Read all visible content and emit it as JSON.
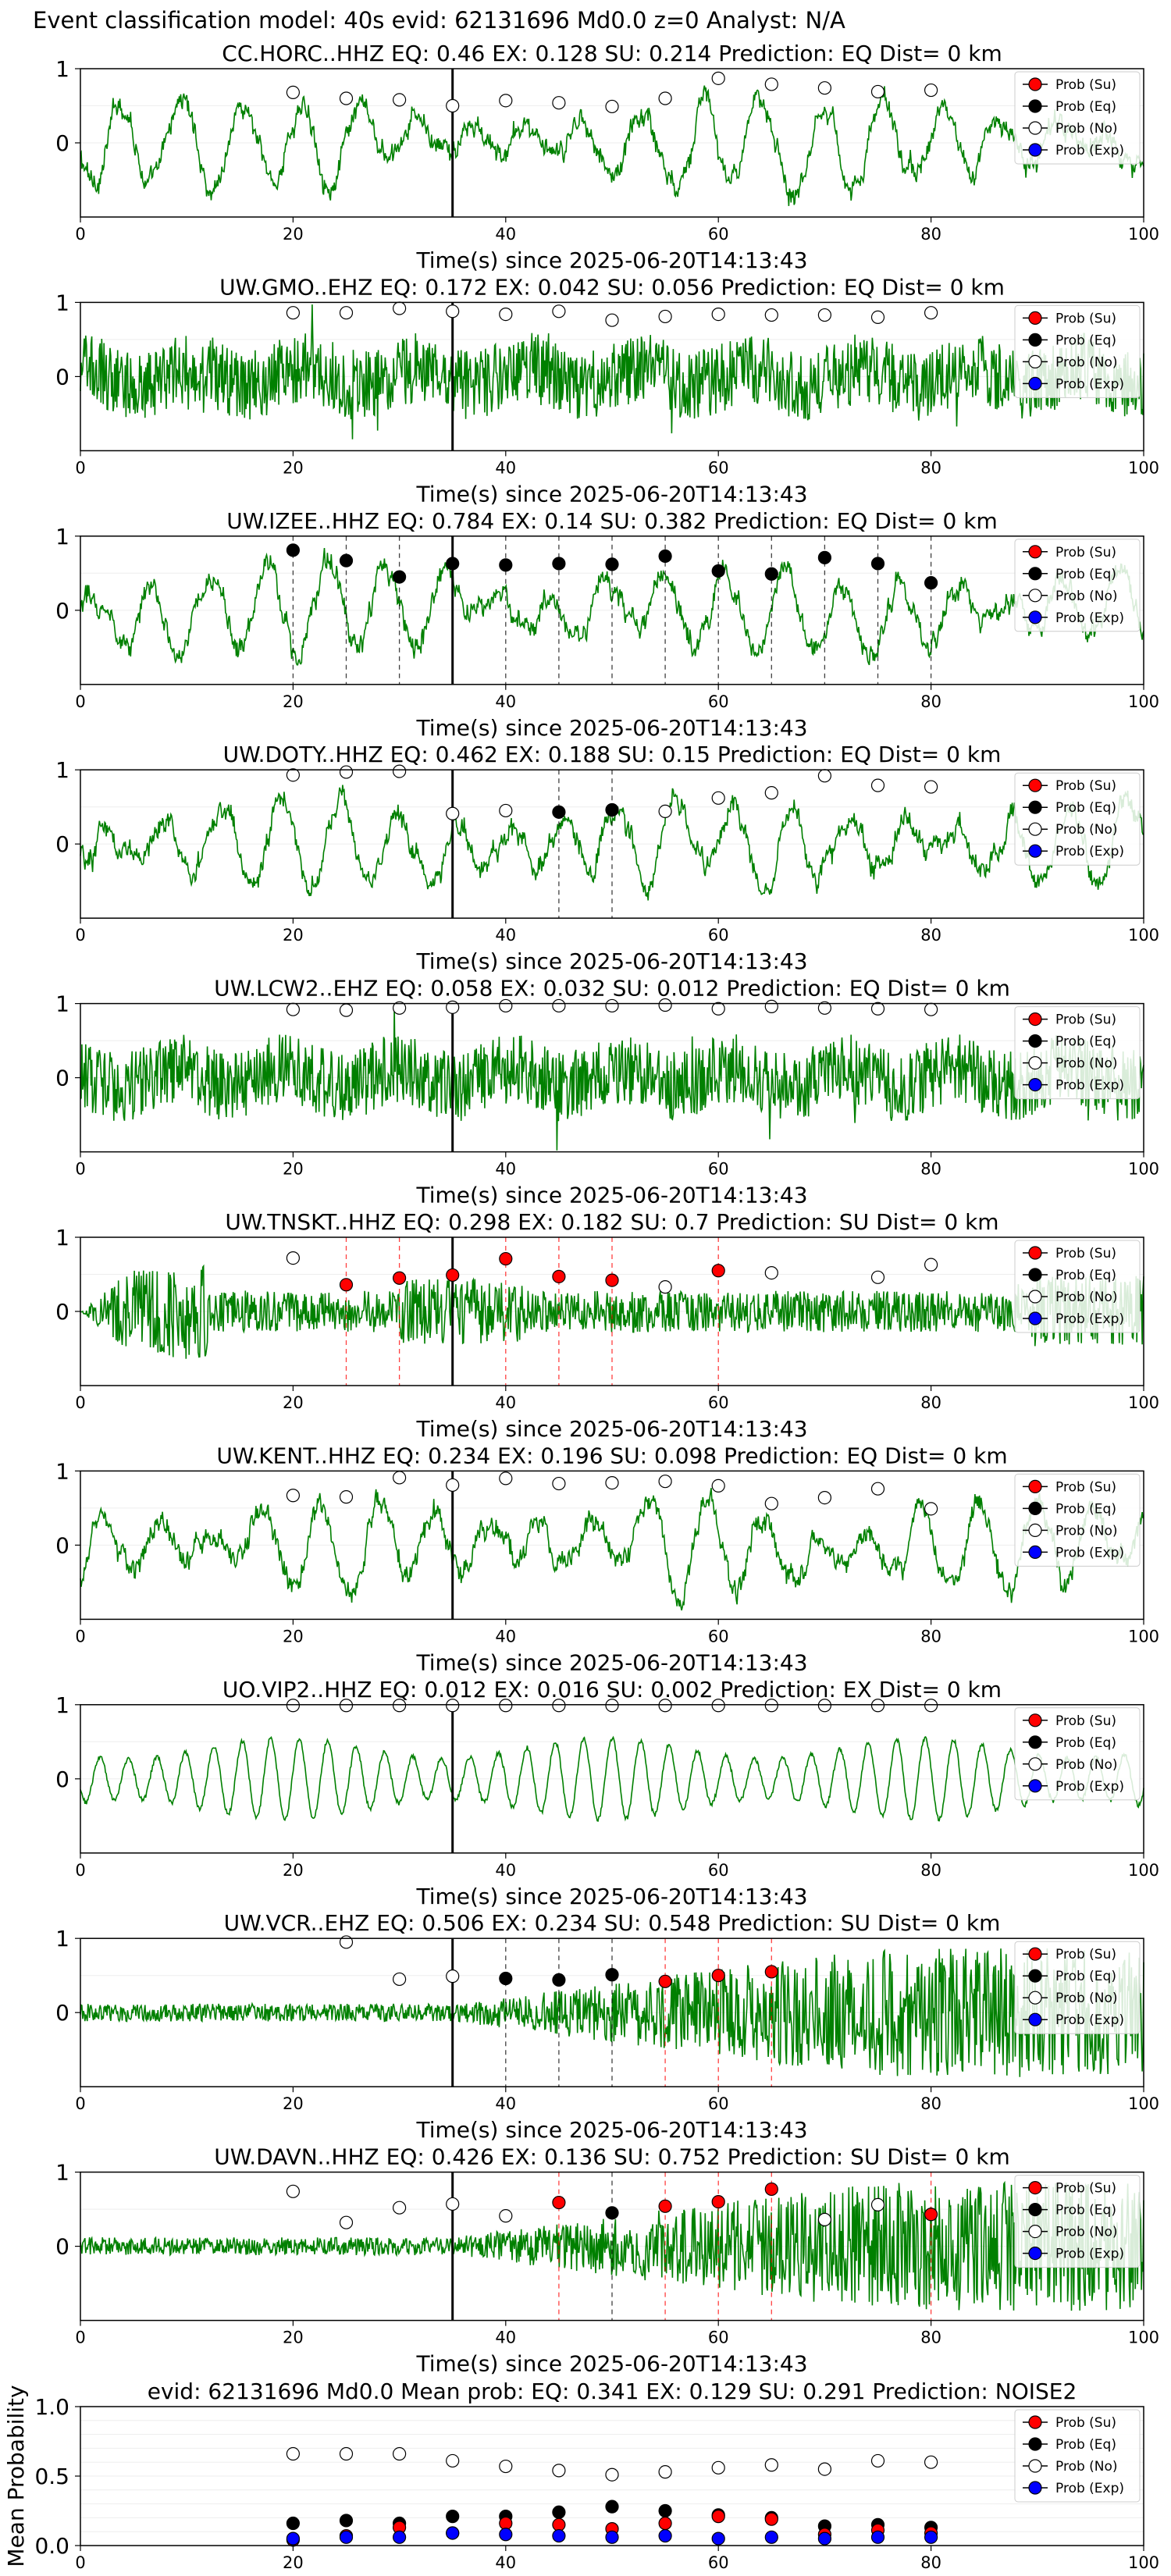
{
  "figure_title": "Event classification model: 40s evid: 62131696 Md0.0 z=0 Analyst: N/A",
  "colors": {
    "waveform": "#008000",
    "su": "#ff0000",
    "eq": "#000000",
    "no": "#ffffff",
    "exp": "#0000ff",
    "marker_edge": "#000000"
  },
  "chart_data": [
    {
      "type": "line",
      "title": "CC.HORC..HHZ   EQ: 0.46  EX: 0.128  SU: 0.214   Prediction: EQ    Dist= 0 km",
      "xlabel": "Time(s) since 2025-06-20T14:13:43",
      "ylabel": "",
      "xlim": [
        0,
        100
      ],
      "ylim": [
        -1,
        1
      ],
      "xticks": [
        0,
        20,
        40,
        60,
        80,
        100
      ],
      "yticks": [
        0,
        1
      ],
      "style": "lowfreq",
      "origin_line_x": 35,
      "dashed_lines": [],
      "legend": [
        "Prob (Su)",
        "Prob (Eq)",
        "Prob (No)",
        "Prob (Exp)"
      ],
      "legend_position": "upper right",
      "series": [
        {
          "name": "Prob (No)",
          "x": [
            20,
            25,
            30,
            35,
            40,
            45,
            50,
            55,
            60,
            65,
            70,
            75,
            80
          ],
          "y": [
            0.68,
            0.6,
            0.58,
            0.5,
            0.57,
            0.54,
            0.49,
            0.6,
            0.87,
            0.79,
            0.74,
            0.69,
            0.71
          ]
        }
      ]
    },
    {
      "type": "line",
      "title": "UW.GMO..EHZ   EQ: 0.172  EX: 0.042  SU: 0.056   Prediction: EQ    Dist= 0 km",
      "xlabel": "Time(s) since 2025-06-20T14:13:43",
      "ylabel": "",
      "xlim": [
        0,
        100
      ],
      "ylim": [
        -1,
        1
      ],
      "xticks": [
        0,
        20,
        40,
        60,
        80,
        100
      ],
      "yticks": [
        0,
        1
      ],
      "style": "noise",
      "origin_line_x": 35,
      "dashed_lines": [],
      "legend": [
        "Prob (Su)",
        "Prob (Eq)",
        "Prob (No)",
        "Prob (Exp)"
      ],
      "legend_position": "upper right",
      "series": [
        {
          "name": "Prob (No)",
          "x": [
            20,
            25,
            30,
            35,
            40,
            45,
            50,
            55,
            60,
            65,
            70,
            75,
            80
          ],
          "y": [
            0.86,
            0.86,
            0.92,
            0.88,
            0.84,
            0.88,
            0.76,
            0.81,
            0.84,
            0.83,
            0.83,
            0.8,
            0.86
          ]
        }
      ]
    },
    {
      "type": "line",
      "title": "UW.IZEE..HHZ   EQ: 0.784  EX: 0.14  SU: 0.382   Prediction: EQ    Dist= 0 km",
      "xlabel": "Time(s) since 2025-06-20T14:13:43",
      "ylabel": "",
      "xlim": [
        0,
        100
      ],
      "ylim": [
        -1,
        1
      ],
      "xticks": [
        0,
        20,
        40,
        60,
        80,
        100
      ],
      "yticks": [
        0,
        1
      ],
      "style": "lowfreq",
      "origin_line_x": 35,
      "dashed_lines": [
        {
          "x": 20,
          "color": "black"
        },
        {
          "x": 25,
          "color": "black"
        },
        {
          "x": 30,
          "color": "black"
        },
        {
          "x": 35,
          "color": "black"
        },
        {
          "x": 40,
          "color": "black"
        },
        {
          "x": 45,
          "color": "black"
        },
        {
          "x": 50,
          "color": "black"
        },
        {
          "x": 55,
          "color": "black"
        },
        {
          "x": 60,
          "color": "black"
        },
        {
          "x": 65,
          "color": "black"
        },
        {
          "x": 70,
          "color": "black"
        },
        {
          "x": 75,
          "color": "black"
        },
        {
          "x": 80,
          "color": "black"
        }
      ],
      "legend": [
        "Prob (Su)",
        "Prob (Eq)",
        "Prob (No)",
        "Prob (Exp)"
      ],
      "legend_position": "upper right",
      "series": [
        {
          "name": "Prob (Eq)",
          "x": [
            20,
            25,
            30,
            35,
            40,
            45,
            50,
            55,
            60,
            65,
            70,
            75,
            80
          ],
          "y": [
            0.81,
            0.67,
            0.45,
            0.63,
            0.61,
            0.63,
            0.62,
            0.73,
            0.53,
            0.49,
            0.71,
            0.63,
            0.37
          ]
        }
      ]
    },
    {
      "type": "line",
      "title": "UW.DOTY..HHZ   EQ: 0.462  EX: 0.188  SU: 0.15   Prediction: EQ    Dist= 0 km",
      "xlabel": "Time(s) since 2025-06-20T14:13:43",
      "ylabel": "",
      "xlim": [
        0,
        100
      ],
      "ylim": [
        -1,
        1
      ],
      "xticks": [
        0,
        20,
        40,
        60,
        80,
        100
      ],
      "yticks": [
        0,
        1
      ],
      "style": "lowfreq",
      "origin_line_x": 35,
      "dashed_lines": [
        {
          "x": 45,
          "color": "black"
        },
        {
          "x": 50,
          "color": "black"
        }
      ],
      "legend": [
        "Prob (Su)",
        "Prob (Eq)",
        "Prob (No)",
        "Prob (Exp)"
      ],
      "legend_position": "upper right",
      "series": [
        {
          "name": "Prob (No)",
          "x": [
            20,
            25,
            30,
            35,
            40,
            55,
            60,
            65,
            70,
            75,
            80
          ],
          "y": [
            0.93,
            0.97,
            0.98,
            0.41,
            0.45,
            0.44,
            0.62,
            0.69,
            0.92,
            0.79,
            0.77
          ]
        },
        {
          "name": "Prob (Eq)",
          "x": [
            45,
            50
          ],
          "y": [
            0.43,
            0.46
          ]
        }
      ]
    },
    {
      "type": "line",
      "title": "UW.LCW2..EHZ   EQ: 0.058  EX: 0.032  SU: 0.012   Prediction: EQ    Dist= 0 km",
      "xlabel": "Time(s) since 2025-06-20T14:13:43",
      "ylabel": "",
      "xlim": [
        0,
        100
      ],
      "ylim": [
        -1,
        1
      ],
      "xticks": [
        0,
        20,
        40,
        60,
        80,
        100
      ],
      "yticks": [
        0,
        1
      ],
      "style": "noise",
      "origin_line_x": 35,
      "dashed_lines": [],
      "legend": [
        "Prob (Su)",
        "Prob (Eq)",
        "Prob (No)",
        "Prob (Exp)"
      ],
      "legend_position": "upper right",
      "series": [
        {
          "name": "Prob (No)",
          "x": [
            20,
            25,
            30,
            35,
            40,
            45,
            50,
            55,
            60,
            65,
            70,
            75,
            80
          ],
          "y": [
            0.92,
            0.91,
            0.94,
            0.95,
            0.97,
            0.97,
            0.97,
            0.98,
            0.93,
            0.96,
            0.94,
            0.93,
            0.92
          ]
        }
      ]
    },
    {
      "type": "line",
      "title": "UW.TNSKT..HHZ   EQ: 0.298  EX: 0.182  SU: 0.7   Prediction: SU    Dist= 0 km",
      "xlabel": "Time(s) since 2025-06-20T14:13:43",
      "ylabel": "",
      "xlim": [
        0,
        100
      ],
      "ylim": [
        -1,
        1
      ],
      "xticks": [
        0,
        20,
        40,
        60,
        80,
        100
      ],
      "yticks": [
        0,
        1
      ],
      "style": "burst",
      "origin_line_x": 35,
      "dashed_lines": [
        {
          "x": 25,
          "color": "red"
        },
        {
          "x": 30,
          "color": "red"
        },
        {
          "x": 40,
          "color": "red"
        },
        {
          "x": 45,
          "color": "red"
        },
        {
          "x": 50,
          "color": "red"
        },
        {
          "x": 60,
          "color": "red"
        }
      ],
      "legend": [
        "Prob (Su)",
        "Prob (Eq)",
        "Prob (No)",
        "Prob (Exp)"
      ],
      "legend_position": "upper right",
      "series": [
        {
          "name": "Prob (No)",
          "x": [
            20,
            55,
            65,
            75,
            80
          ],
          "y": [
            0.72,
            0.33,
            0.52,
            0.46,
            0.63
          ]
        },
        {
          "name": "Prob (Su)",
          "x": [
            25,
            30,
            35,
            40,
            45,
            50,
            60
          ],
          "y": [
            0.36,
            0.45,
            0.49,
            0.71,
            0.47,
            0.42,
            0.55
          ]
        }
      ]
    },
    {
      "type": "line",
      "title": "UW.KENT..HHZ   EQ: 0.234  EX: 0.196  SU: 0.098   Prediction: EQ    Dist= 0 km",
      "xlabel": "Time(s) since 2025-06-20T14:13:43",
      "ylabel": "",
      "xlim": [
        0,
        100
      ],
      "ylim": [
        -1,
        1
      ],
      "xticks": [
        0,
        20,
        40,
        60,
        80,
        100
      ],
      "yticks": [
        0,
        1
      ],
      "style": "lowfreq",
      "origin_line_x": 35,
      "dashed_lines": [],
      "legend": [
        "Prob (Su)",
        "Prob (Eq)",
        "Prob (No)",
        "Prob (Exp)"
      ],
      "legend_position": "upper right",
      "series": [
        {
          "name": "Prob (No)",
          "x": [
            20,
            25,
            30,
            35,
            40,
            45,
            50,
            55,
            60,
            65,
            70,
            75,
            80
          ],
          "y": [
            0.67,
            0.65,
            0.91,
            0.81,
            0.9,
            0.83,
            0.84,
            0.86,
            0.8,
            0.56,
            0.64,
            0.76,
            0.49
          ]
        }
      ]
    },
    {
      "type": "line",
      "title": "UO.VIP2..HHZ   EQ: 0.012  EX: 0.016  SU: 0.002   Prediction: EX    Dist= 0 km",
      "xlabel": "Time(s) since 2025-06-20T14:13:43",
      "ylabel": "",
      "xlim": [
        0,
        100
      ],
      "ylim": [
        -1,
        1
      ],
      "xticks": [
        0,
        20,
        40,
        60,
        80,
        100
      ],
      "yticks": [
        0,
        1
      ],
      "style": "swell",
      "origin_line_x": 35,
      "dashed_lines": [],
      "legend": [
        "Prob (Su)",
        "Prob (Eq)",
        "Prob (No)",
        "Prob (Exp)"
      ],
      "legend_position": "upper right",
      "series": [
        {
          "name": "Prob (No)",
          "x": [
            20,
            25,
            30,
            35,
            40,
            45,
            50,
            55,
            60,
            65,
            70,
            75,
            80
          ],
          "y": [
            0.99,
            0.99,
            0.99,
            0.99,
            0.99,
            0.99,
            0.99,
            0.99,
            0.99,
            0.99,
            0.99,
            0.99,
            0.99
          ]
        }
      ]
    },
    {
      "type": "line",
      "title": "UW.VCR..EHZ   EQ: 0.506  EX: 0.234  SU: 0.548   Prediction: SU    Dist= 0 km",
      "xlabel": "Time(s) since 2025-06-20T14:13:43",
      "ylabel": "",
      "xlim": [
        0,
        100
      ],
      "ylim": [
        -1,
        1
      ],
      "xticks": [
        0,
        20,
        40,
        60,
        80,
        100
      ],
      "yticks": [
        0,
        1
      ],
      "style": "growing",
      "origin_line_x": 35,
      "dashed_lines": [
        {
          "x": 40,
          "color": "black"
        },
        {
          "x": 45,
          "color": "black"
        },
        {
          "x": 50,
          "color": "black"
        },
        {
          "x": 55,
          "color": "red"
        },
        {
          "x": 60,
          "color": "red"
        },
        {
          "x": 65,
          "color": "red"
        }
      ],
      "legend": [
        "Prob (Su)",
        "Prob (Eq)",
        "Prob (No)",
        "Prob (Exp)"
      ],
      "legend_position": "upper right",
      "series": [
        {
          "name": "Prob (No)",
          "x": [
            25,
            30,
            35
          ],
          "y": [
            0.95,
            0.45,
            0.49
          ]
        },
        {
          "name": "Prob (Eq)",
          "x": [
            40,
            45,
            50
          ],
          "y": [
            0.46,
            0.44,
            0.51
          ]
        },
        {
          "name": "Prob (Su)",
          "x": [
            55,
            60,
            65
          ],
          "y": [
            0.42,
            0.5,
            0.55
          ]
        }
      ]
    },
    {
      "type": "line",
      "title": "UW.DAVN..HHZ   EQ: 0.426  EX: 0.136  SU: 0.752   Prediction: SU    Dist= 0 km",
      "xlabel": "Time(s) since 2025-06-20T14:13:43",
      "ylabel": "",
      "xlim": [
        0,
        100
      ],
      "ylim": [
        -1,
        1
      ],
      "xticks": [
        0,
        20,
        40,
        60,
        80,
        100
      ],
      "yticks": [
        0,
        1
      ],
      "style": "growing",
      "origin_line_x": 35,
      "dashed_lines": [
        {
          "x": 45,
          "color": "red"
        },
        {
          "x": 50,
          "color": "black"
        },
        {
          "x": 55,
          "color": "red"
        },
        {
          "x": 60,
          "color": "red"
        },
        {
          "x": 65,
          "color": "red"
        },
        {
          "x": 80,
          "color": "red"
        }
      ],
      "legend": [
        "Prob (Su)",
        "Prob (Eq)",
        "Prob (No)",
        "Prob (Exp)"
      ],
      "legend_position": "upper right",
      "series": [
        {
          "name": "Prob (No)",
          "x": [
            20,
            25,
            30,
            35,
            40,
            70,
            75
          ],
          "y": [
            0.74,
            0.32,
            0.52,
            0.57,
            0.41,
            0.36,
            0.56
          ]
        },
        {
          "name": "Prob (Su)",
          "x": [
            45,
            55,
            60,
            65,
            80
          ],
          "y": [
            0.59,
            0.54,
            0.6,
            0.77,
            0.43
          ]
        },
        {
          "name": "Prob (Eq)",
          "x": [
            50
          ],
          "y": [
            0.45
          ]
        }
      ]
    },
    {
      "type": "scatter",
      "title": "evid: 62131696  Md0.0   Mean prob:   EQ: 0.341  EX: 0.129  SU: 0.291   Prediction: NOISE2",
      "xlabel": "",
      "ylabel": "Mean Probability",
      "xlim": [
        0,
        100
      ],
      "ylim": [
        0,
        1
      ],
      "xticks": [
        0,
        20,
        40,
        60,
        80,
        100
      ],
      "yticks": [
        0.0,
        0.5,
        1.0
      ],
      "legend": [
        "Prob (Su)",
        "Prob (Eq)",
        "Prob (No)",
        "Prob (Exp)"
      ],
      "legend_position": "upper right",
      "series": [
        {
          "name": "Prob (No)",
          "x": [
            20,
            25,
            30,
            35,
            40,
            45,
            50,
            55,
            60,
            65,
            70,
            75,
            80
          ],
          "y": [
            0.66,
            0.66,
            0.66,
            0.61,
            0.57,
            0.54,
            0.51,
            0.53,
            0.56,
            0.58,
            0.55,
            0.61,
            0.6
          ]
        },
        {
          "name": "Prob (Eq)",
          "x": [
            20,
            25,
            30,
            35,
            40,
            45,
            50,
            55,
            60,
            65,
            70,
            75,
            80
          ],
          "y": [
            0.16,
            0.18,
            0.16,
            0.21,
            0.21,
            0.24,
            0.28,
            0.25,
            0.22,
            0.2,
            0.14,
            0.15,
            0.13
          ]
        },
        {
          "name": "Prob (Su)",
          "x": [
            20,
            25,
            30,
            35,
            40,
            45,
            50,
            55,
            60,
            65,
            70,
            75,
            80
          ],
          "y": [
            0.04,
            0.07,
            0.13,
            0.09,
            0.16,
            0.15,
            0.12,
            0.16,
            0.21,
            0.19,
            0.08,
            0.11,
            0.09
          ]
        },
        {
          "name": "Prob (Exp)",
          "x": [
            20,
            25,
            30,
            35,
            40,
            45,
            50,
            55,
            60,
            65,
            70,
            75,
            80
          ],
          "y": [
            0.05,
            0.06,
            0.06,
            0.09,
            0.08,
            0.07,
            0.06,
            0.07,
            0.05,
            0.06,
            0.05,
            0.06,
            0.06
          ]
        }
      ]
    }
  ]
}
